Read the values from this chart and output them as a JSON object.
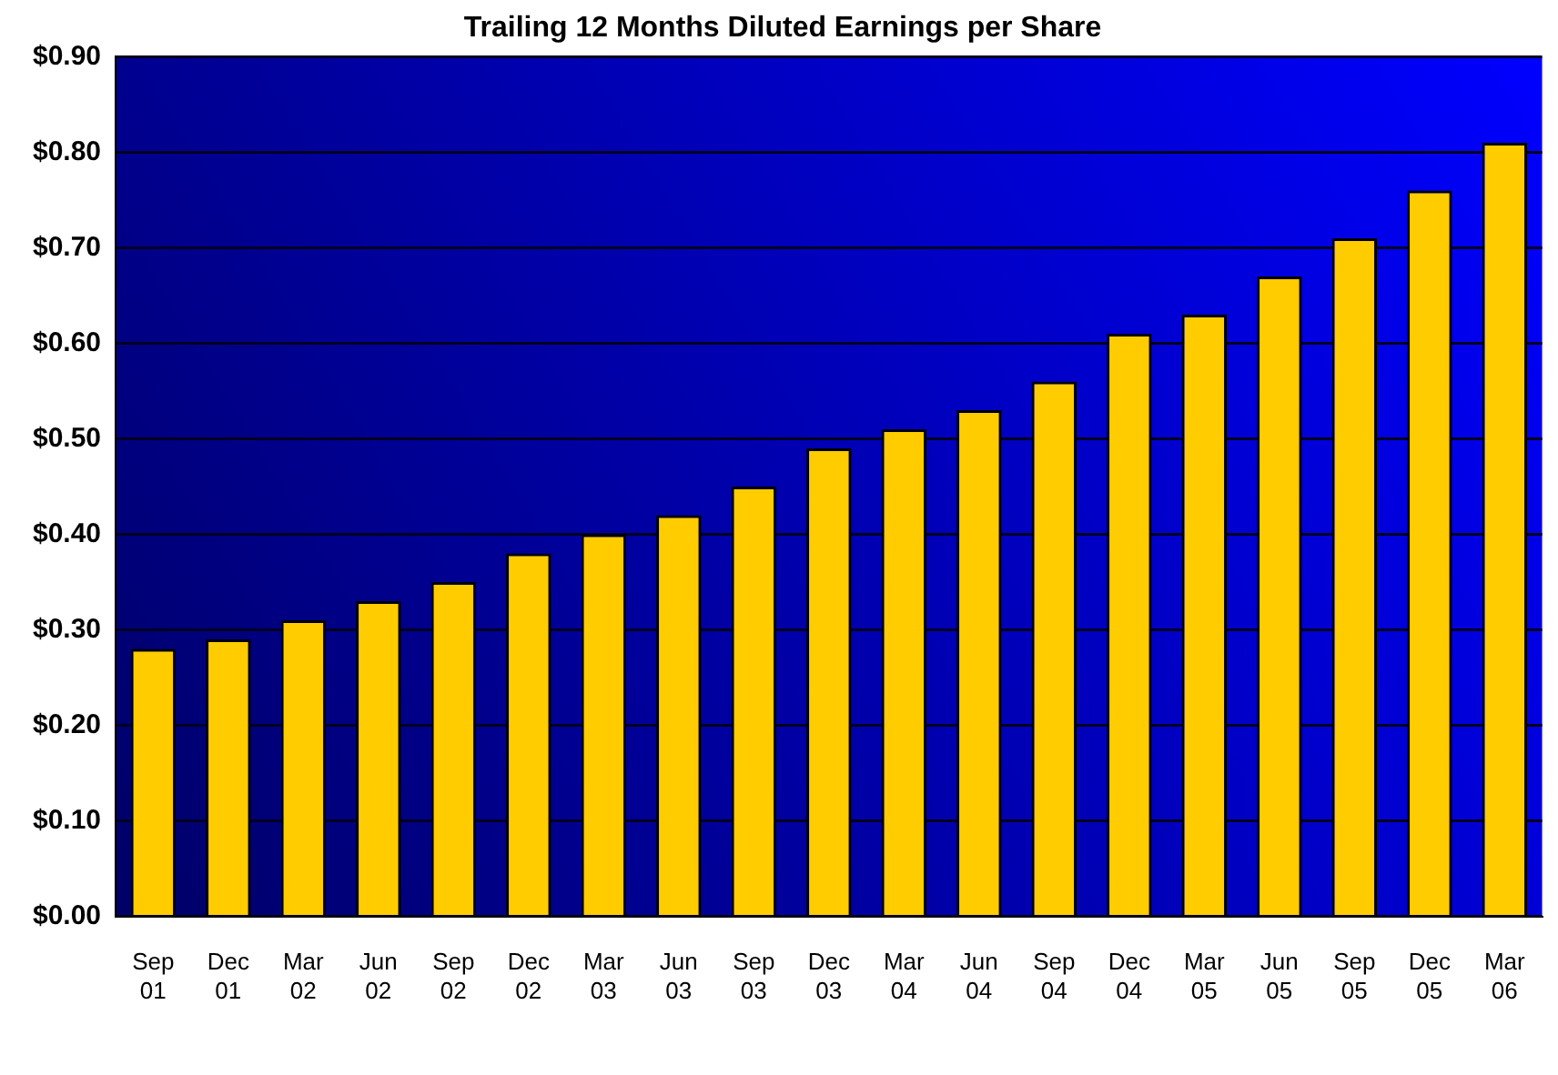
{
  "chart_data": {
    "type": "bar",
    "title": "Trailing 12 Months Diluted Earnings per Share",
    "categories": [
      "Sep 01",
      "Dec 01",
      "Mar 02",
      "Jun 02",
      "Sep 02",
      "Dec 02",
      "Mar 03",
      "Jun 03",
      "Sep 03",
      "Dec 03",
      "Mar 04",
      "Jun 04",
      "Sep 04",
      "Dec 04",
      "Mar 05",
      "Jun 05",
      "Sep 05",
      "Dec 05",
      "Mar 06"
    ],
    "values": [
      0.28,
      0.29,
      0.31,
      0.33,
      0.35,
      0.38,
      0.4,
      0.42,
      0.45,
      0.49,
      0.51,
      0.53,
      0.56,
      0.61,
      0.63,
      0.67,
      0.71,
      0.76,
      0.81
    ],
    "color": "#ffcc00",
    "ylim": [
      0,
      0.9
    ],
    "yticks": [
      {
        "value": 0,
        "label": "$0.00"
      },
      {
        "value": 0.1,
        "label": "$0.10"
      },
      {
        "value": 0.2,
        "label": "$0.20"
      },
      {
        "value": 0.3,
        "label": "$0.30"
      },
      {
        "value": 0.4,
        "label": "$0.40"
      },
      {
        "value": 0.5,
        "label": "$0.50"
      },
      {
        "value": 0.6,
        "label": "$0.60"
      },
      {
        "value": 0.7,
        "label": "$0.70"
      },
      {
        "value": 0.8,
        "label": "$0.80"
      },
      {
        "value": 0.9,
        "label": "$0.90"
      }
    ],
    "grid": "y",
    "legend": false
  }
}
